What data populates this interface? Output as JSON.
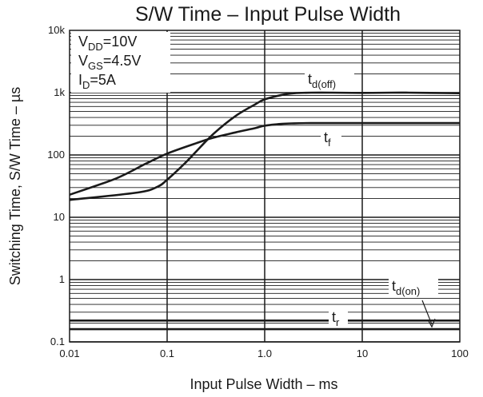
{
  "chart_data": {
    "type": "line",
    "title": "S/W Time  –  Input Pulse Width",
    "xlabel": "Input Pulse Width  –  ms",
    "ylabel": "Switching Time, S/W Time  –  µs",
    "x_scale": "log",
    "y_scale": "log",
    "xlim": [
      0.01,
      100
    ],
    "ylim": [
      0.1,
      10000
    ],
    "grid": true,
    "x_ticks": [
      "0.01",
      "0.1",
      "1.0",
      "10",
      "100"
    ],
    "y_ticks": [
      "0.1",
      "1",
      "10",
      "100",
      "1k",
      "10k"
    ],
    "conditions": [
      {
        "main": "V",
        "sub": "DD",
        "rest": "=10V"
      },
      {
        "main": "V",
        "sub": "GS",
        "rest": "=4.5V"
      },
      {
        "main": "I",
        "sub": "D",
        "rest": "=5A"
      }
    ],
    "series": [
      {
        "name": "td(off)",
        "label_main": "t",
        "label_sub": "d(off)",
        "x": [
          0.01,
          0.05,
          0.08,
          0.1,
          0.15,
          0.2,
          0.3,
          0.5,
          0.8,
          1.0,
          1.5,
          2,
          3,
          5,
          10,
          20,
          30,
          50,
          100
        ],
        "y": [
          19,
          25,
          31,
          40,
          72,
          115,
          220,
          420,
          650,
          780,
          920,
          980,
          1000,
          1000,
          990,
          1000,
          1000,
          990,
          980
        ]
      },
      {
        "name": "tf",
        "label_main": "t",
        "label_sub": "f",
        "x": [
          0.01,
          0.03,
          0.06,
          0.1,
          0.2,
          0.3,
          0.5,
          0.8,
          1.0,
          1.5,
          2,
          3,
          5,
          10,
          30,
          100
        ],
        "y": [
          23,
          42,
          72,
          105,
          155,
          190,
          230,
          270,
          295,
          315,
          322,
          325,
          325,
          325,
          325,
          325
        ]
      },
      {
        "name": "tr",
        "label_main": "t",
        "label_sub": "r",
        "x": [
          0.01,
          100
        ],
        "y": [
          0.22,
          0.22
        ]
      },
      {
        "name": "td(on)",
        "label_main": "t",
        "label_sub": "d(on)",
        "x": [
          0.01,
          100
        ],
        "y": [
          0.16,
          0.16
        ]
      }
    ]
  }
}
